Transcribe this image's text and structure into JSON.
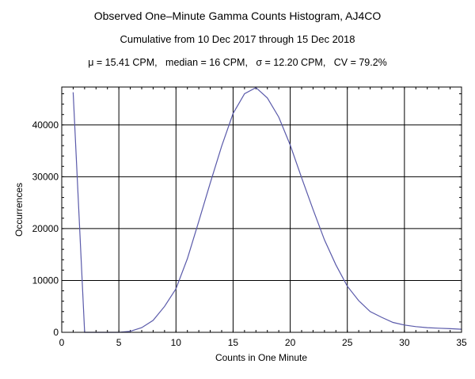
{
  "chart_data": {
    "type": "line",
    "title": "Observed One–Minute Gamma Counts Histogram, AJ4CO",
    "subtitle": "Cumulative from 10 Dec 2017 through 15 Dec 2018",
    "stats_line": "μ = 15.41 CPM,   median = 16 CPM,   σ = 12.20 CPM,   CV = 79.2%",
    "xlabel": "Counts in One Minute",
    "ylabel": "Occurrences",
    "xlim": [
      0,
      35
    ],
    "ylim": [
      0,
      47300
    ],
    "xticks": [
      0,
      5,
      10,
      15,
      20,
      25,
      30,
      35
    ],
    "yticks": [
      0,
      10000,
      20000,
      30000,
      40000
    ],
    "grid": true,
    "line_color": "#5a5aaa",
    "series": [
      {
        "x": [
          1,
          2,
          3,
          4,
          5,
          6,
          7,
          8,
          9,
          10,
          11,
          12,
          13,
          14,
          15,
          16,
          17,
          18,
          19,
          20,
          21,
          22,
          23,
          24,
          25,
          26,
          27,
          28,
          29,
          30,
          31,
          32,
          33,
          34,
          35
        ],
        "y": [
          46300,
          0,
          0,
          0,
          0,
          200,
          900,
          2300,
          5000,
          8400,
          14200,
          21400,
          28800,
          35900,
          42200,
          46000,
          47200,
          45200,
          41500,
          36100,
          29800,
          23700,
          17800,
          13000,
          8900,
          6100,
          4000,
          2900,
          1900,
          1400,
          1100,
          900,
          800,
          700,
          600
        ]
      }
    ]
  }
}
